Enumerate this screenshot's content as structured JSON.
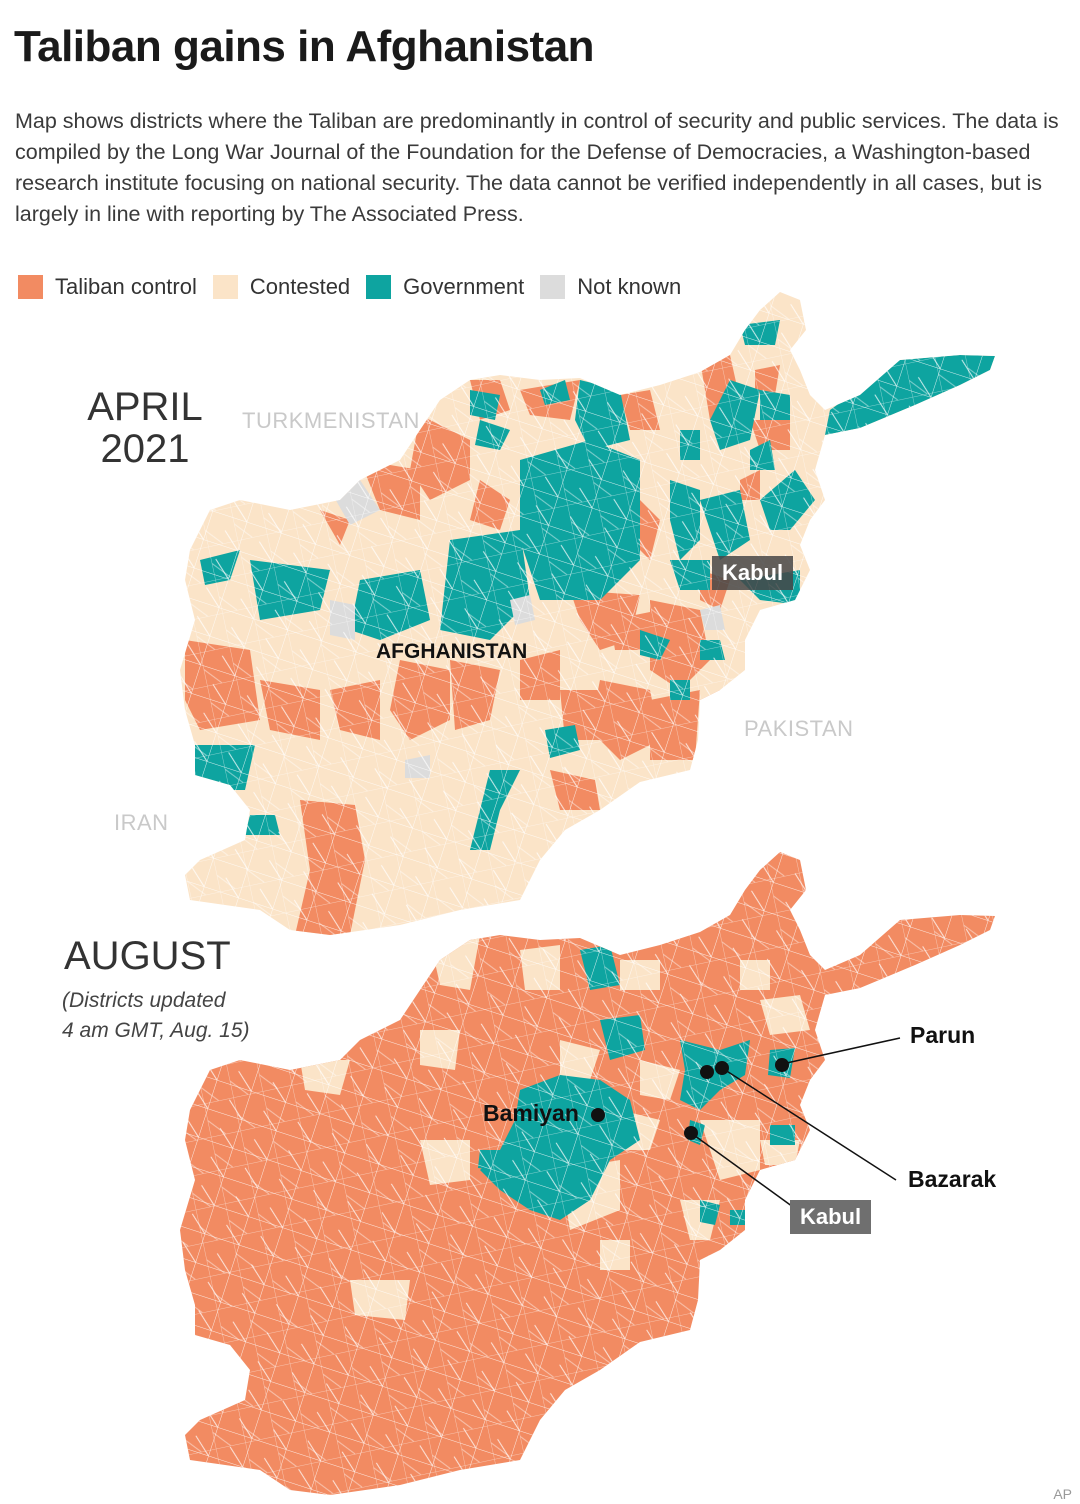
{
  "header": {
    "title": "Taliban gains in Afghanistan",
    "description": "Map shows districts where the Taliban are predominantly in control of security and public services. The data is compiled by the Long War Journal of the Foundation for the Defense of Democracies, a Washington-based research institute focusing on national security. The data cannot be verified independently in all cases, but is largely in line with reporting by The Associated Press."
  },
  "legend": [
    {
      "label": "Taliban control",
      "color": "#f28b62"
    },
    {
      "label": "Contested",
      "color": "#fbe4c8"
    },
    {
      "label": "Government",
      "color": "#0ea4a0"
    },
    {
      "label": "Not known",
      "color": "#dcdcdc"
    }
  ],
  "maps": {
    "april": {
      "label_line1": "APRIL",
      "label_line2": "2021",
      "neighbors": {
        "turkmenistan": "TURKMENISTAN",
        "pakistan": "PAKISTAN",
        "iran": "IRAN"
      },
      "country_label": "AFGHANISTAN",
      "city_label": "Kabul"
    },
    "august": {
      "label": "AUGUST",
      "note_line1": "(Districts updated",
      "note_line2": "4 am GMT, Aug. 15)",
      "cities": {
        "parun": "Parun",
        "bamiyan": "Bamiyan",
        "bazarak": "Bazarak",
        "kabul": "Kabul"
      }
    }
  },
  "credit": "AP"
}
